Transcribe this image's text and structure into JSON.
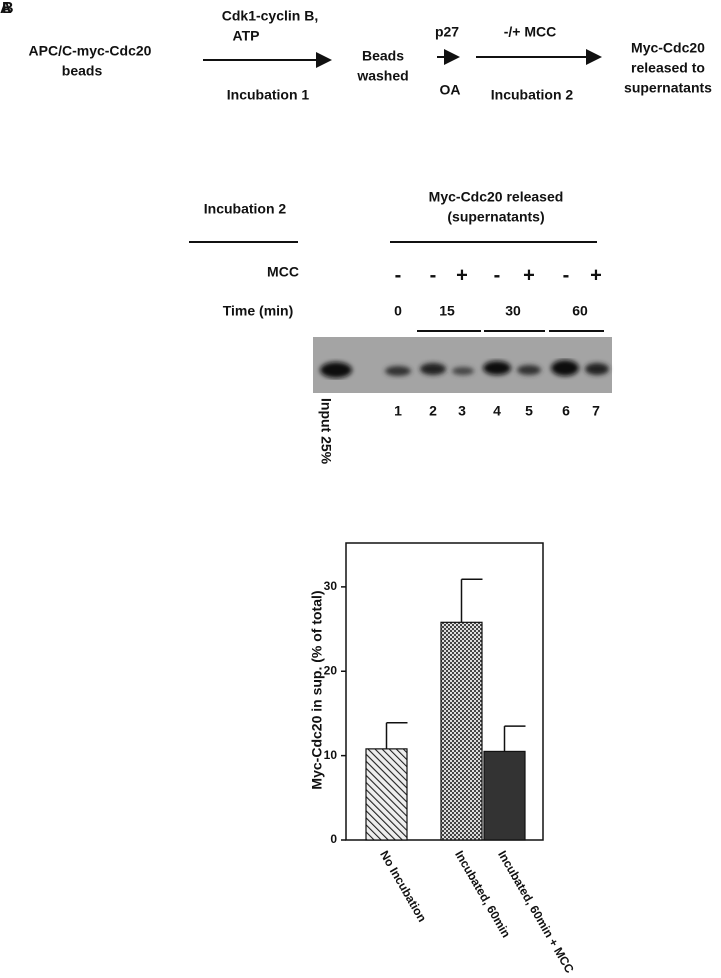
{
  "panel_labels": [
    "A",
    "B"
  ],
  "scheme": {
    "start": [
      "APC/C-myc-Cdc20",
      "beads"
    ],
    "step1_top": [
      "Cdk1-cyclin B,",
      "ATP"
    ],
    "step1_bottom": "Incubation 1",
    "washed": [
      "Beads",
      "washed"
    ],
    "step2a_top": "p27",
    "step2a_bottom": "OA",
    "step2b_top": "-/+ MCC",
    "step2b_bottom": "Incubation 2",
    "end": [
      "Myc-Cdc20",
      "released to",
      "supernatants"
    ]
  },
  "blot": {
    "left_header": "Incubation 2",
    "right_header": [
      "Myc-Cdc20 released",
      "(supernatants)"
    ],
    "mcc_label": "MCC",
    "mcc": [
      "-",
      "-",
      "+",
      "-",
      "+",
      "-",
      "+"
    ],
    "time_label": "Time (min)",
    "times": [
      "0",
      "15",
      "30",
      "60"
    ],
    "lanes": [
      "1",
      "2",
      "3",
      "4",
      "5",
      "6",
      "7"
    ],
    "input_label": "Input 25%"
  },
  "chart_data": {
    "type": "bar",
    "y_label": "Myc-Cdc20 in sup. (% of total)",
    "categories": [
      "No Incubation",
      "Incubated, 60min",
      "Incubated, 60min + MCC"
    ],
    "values": [
      10.8,
      25.8,
      10.5
    ],
    "errors": [
      3.1,
      5.1,
      3.0
    ],
    "patterns": [
      "diagonal",
      "checker",
      "solid"
    ],
    "ylim": [
      0,
      35.2
    ],
    "yticks": [
      0,
      10,
      20,
      30
    ]
  }
}
